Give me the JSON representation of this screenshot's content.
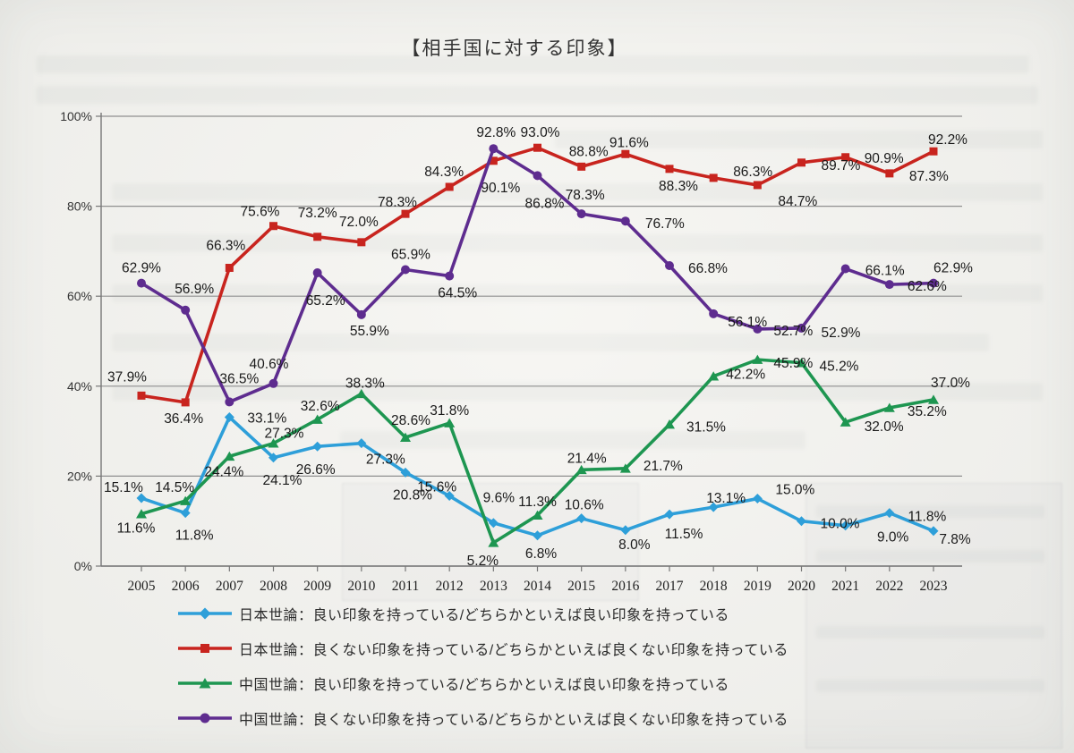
{
  "chart_data": {
    "type": "line",
    "title": "【相手国に対する印象】",
    "x": [
      2005,
      2006,
      2007,
      2008,
      2009,
      2010,
      2011,
      2012,
      2013,
      2014,
      2015,
      2016,
      2017,
      2018,
      2019,
      2020,
      2021,
      2022,
      2023
    ],
    "y_axis": {
      "min": 0,
      "max": 100,
      "ticks": [
        0,
        20,
        40,
        60,
        80,
        100
      ],
      "tick_labels": [
        "0%",
        "20%",
        "40%",
        "60%",
        "80%",
        "100%"
      ]
    },
    "grid": true,
    "legend_position": "bottom",
    "series": [
      {
        "id": "japan-positive",
        "name": "日本世論：良い印象を持っている/どちらかといえば良い印象を持っている",
        "color": "#2E9FD9",
        "marker": "diamond",
        "values": [
          15.1,
          11.8,
          33.1,
          24.1,
          26.6,
          27.3,
          20.8,
          15.6,
          9.6,
          6.8,
          10.6,
          8.0,
          11.5,
          13.1,
          15.0,
          10.0,
          9.0,
          11.8,
          7.8
        ]
      },
      {
        "id": "japan-negative",
        "name": "日本世論：良くない印象を持っている/どちらかといえば良くない印象を持っている",
        "color": "#C8241E",
        "marker": "square",
        "values": [
          37.9,
          36.4,
          66.3,
          75.6,
          73.2,
          72.0,
          78.3,
          84.3,
          90.1,
          93.0,
          88.8,
          91.6,
          88.3,
          86.3,
          84.7,
          89.7,
          90.9,
          87.3,
          92.2
        ]
      },
      {
        "id": "china-positive",
        "name": "中国世論：良い印象を持っている/どちらかといえば良い印象を持っている",
        "color": "#1E9651",
        "marker": "triangle",
        "values": [
          11.6,
          14.5,
          24.4,
          27.3,
          32.6,
          38.3,
          28.6,
          31.8,
          5.2,
          11.3,
          21.4,
          21.7,
          31.5,
          42.2,
          45.9,
          45.2,
          32.0,
          35.2,
          37.0
        ]
      },
      {
        "id": "china-negative",
        "name": "中国世論：良くない印象を持っている/どちらかといえば良くない印象を持っている",
        "color": "#5E2C8F",
        "marker": "circle",
        "values": [
          62.9,
          56.9,
          36.5,
          40.6,
          65.2,
          55.9,
          65.9,
          64.5,
          92.8,
          86.8,
          78.3,
          76.7,
          66.8,
          56.1,
          52.7,
          52.9,
          66.1,
          62.6,
          62.9
        ]
      }
    ]
  }
}
